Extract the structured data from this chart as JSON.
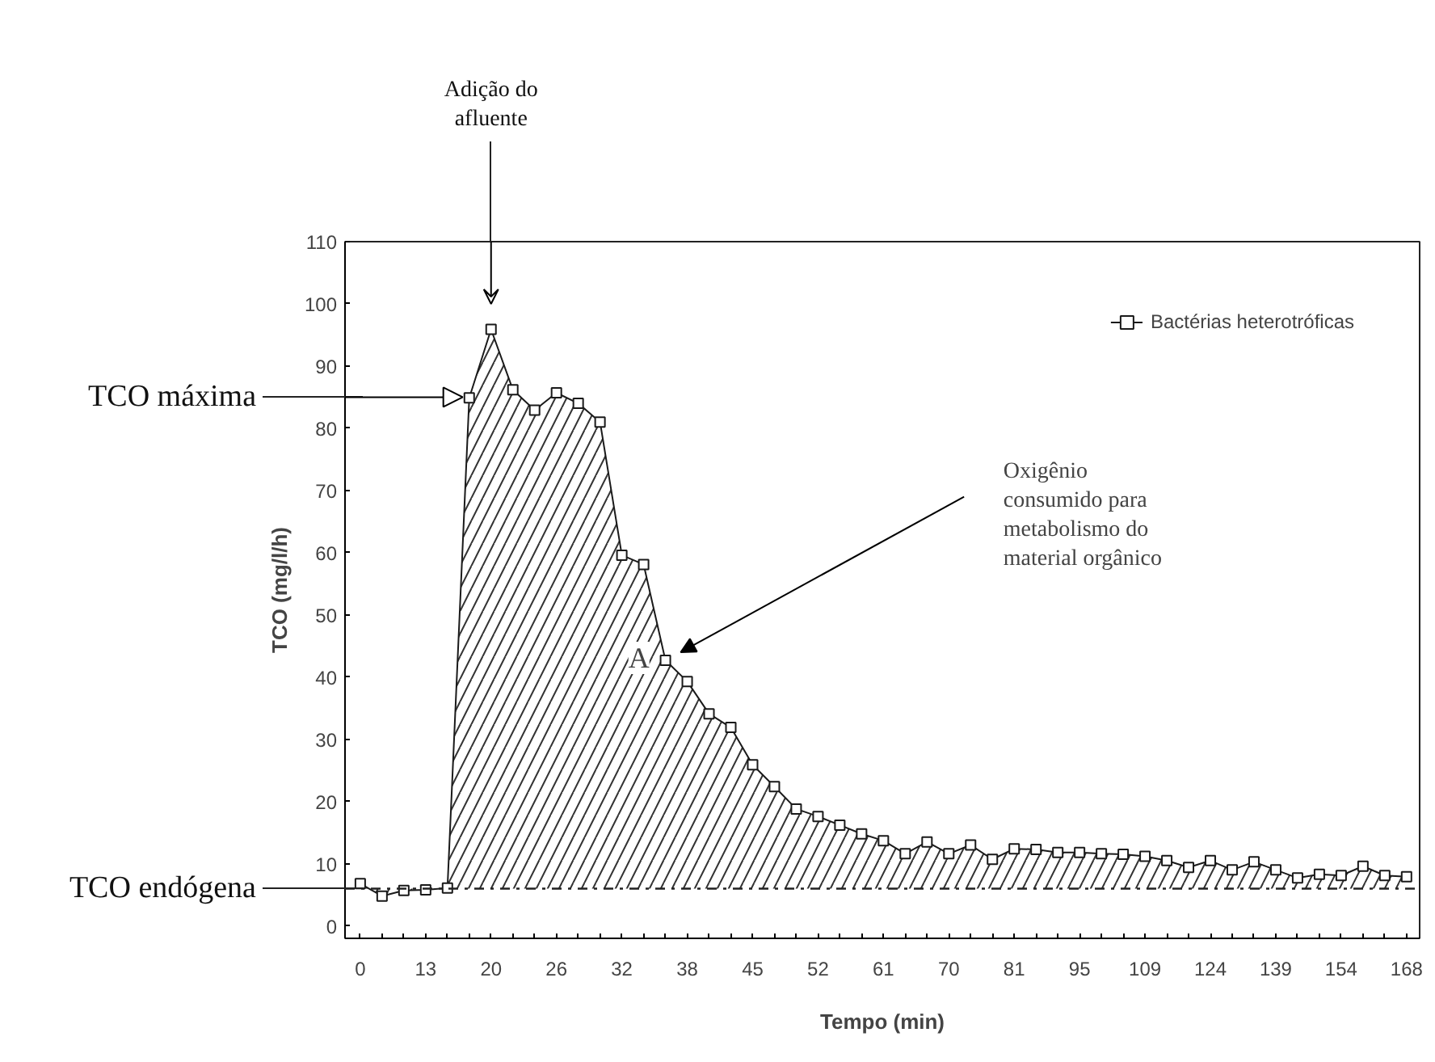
{
  "chart_data": {
    "type": "area",
    "xlabel": "Tempo (min)",
    "ylabel": "TCO (mg/l/h)",
    "categories": [
      "0",
      null,
      null,
      "13",
      null,
      null,
      "20",
      null,
      null,
      "26",
      null,
      null,
      "32",
      null,
      null,
      "38",
      null,
      null,
      "45",
      null,
      null,
      "52",
      null,
      null,
      "61",
      null,
      null,
      "70",
      null,
      null,
      "81",
      null,
      null,
      "95",
      null,
      null,
      "109",
      null,
      null,
      "124",
      null,
      null,
      "139",
      null,
      null,
      "154",
      null,
      null,
      "168"
    ],
    "series": [
      {
        "name": "Bactérias heterotróficas",
        "color": "#1a1a1a",
        "values": [
          6.8,
          4.8,
          5.7,
          5.8,
          6.1,
          84.9,
          95.9,
          86.2,
          82.9,
          85.7,
          84.0,
          81.0,
          59.6,
          58.1,
          42.7,
          39.3,
          34.1,
          31.9,
          25.9,
          22.4,
          18.8,
          17.6,
          16.2,
          14.8,
          13.7,
          11.6,
          13.5,
          11.6,
          13.0,
          10.7,
          12.4,
          12.3,
          11.8,
          11.8,
          11.6,
          11.5,
          11.2,
          10.5,
          9.4,
          10.5,
          9.0,
          10.3,
          9.0,
          7.7,
          8.3,
          8.1,
          9.6,
          8.1,
          7.9
        ]
      }
    ],
    "ylim": [
      -2,
      110
    ],
    "yticks": [
      0,
      10,
      20,
      30,
      40,
      50,
      60,
      70,
      80,
      90,
      100,
      110
    ],
    "ref_lines": [
      {
        "axis": "y",
        "value": 6,
        "label": "TCO endógena",
        "line_style": "dashed"
      }
    ],
    "annotations": [
      "Adição do afluente",
      "TCO máxima",
      "Oxigênio consumido para metabolismo do material orgânico",
      "A"
    ],
    "marker": "square",
    "line_style": "solid",
    "grid": false,
    "legend": "top right"
  }
}
